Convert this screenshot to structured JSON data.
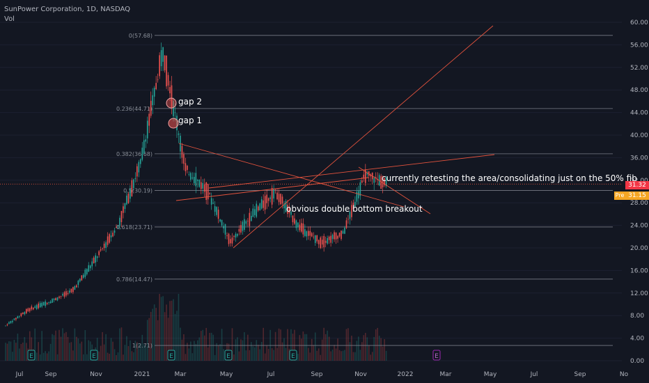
{
  "header": {
    "title": "SunPower Corporation, 1D, NASDAQ",
    "indicator": "Vol"
  },
  "price_tags": {
    "last": "31.32",
    "pre_label": "Pre",
    "pre_value": "31.15"
  },
  "annotations": {
    "gap2": "gap 2",
    "gap1": "gap 1",
    "retest": "currently retesting the area/consolidating  just on the 50% fib",
    "breakout": "obvious double bottom breakout"
  },
  "event_markers": {
    "earnings": "E",
    "dividend": "E"
  },
  "colors": {
    "bg": "#131722",
    "up": "#26a69a",
    "down": "#ef5350",
    "trend": "#e5533d",
    "fib": "#787b86",
    "pre": "#f5a623",
    "last": "#f23645"
  },
  "chart_data": {
    "type": "candlestick",
    "title": "SunPower Corporation, 1D, NASDAQ",
    "ylim": [
      0,
      62
    ],
    "y_ticks": [
      "60.00",
      "56.00",
      "52.00",
      "48.00",
      "44.00",
      "40.00",
      "36.00",
      "32.00",
      "28.00",
      "24.00",
      "20.00",
      "16.00",
      "12.00",
      "8.00",
      "4.00",
      "0.00"
    ],
    "x_ticks": [
      "Jul",
      "Sep",
      "Nov",
      "2021",
      "Mar",
      "May",
      "Jul",
      "Sep",
      "Nov",
      "2022",
      "Mar",
      "May",
      "Jul",
      "Sep",
      "No"
    ],
    "fib_levels": [
      {
        "label": "0(57.68)",
        "value": 57.68
      },
      {
        "label": "0.236(44.71)",
        "value": 44.71
      },
      {
        "label": "0.382(36.68)",
        "value": 36.68
      },
      {
        "label": "0.5(30.19)",
        "value": 30.19
      },
      {
        "label": "0.618(23.71)",
        "value": 23.71
      },
      {
        "label": "0.786(14.47)",
        "value": 14.47
      },
      {
        "label": "1(2.71)",
        "value": 2.71
      }
    ],
    "price_path": [
      [
        "2020-07",
        6.2
      ],
      [
        "2020-08",
        9.0
      ],
      [
        "2020-09",
        10.5
      ],
      [
        "2020-10",
        12.5
      ],
      [
        "2020-11",
        18.0
      ],
      [
        "2020-12",
        24.0
      ],
      [
        "2021-01",
        35.0
      ],
      [
        "2021-02",
        55.0
      ],
      [
        "2021-03",
        34.0
      ],
      [
        "2021-04",
        30.0
      ],
      [
        "2021-05",
        21.0
      ],
      [
        "2021-06",
        26.0
      ],
      [
        "2021-07",
        30.0
      ],
      [
        "2021-08",
        24.0
      ],
      [
        "2021-09",
        21.0
      ],
      [
        "2021-10",
        22.5
      ],
      [
        "2021-11",
        33.0
      ],
      [
        "2021-12",
        31.32
      ]
    ],
    "last_price": 31.32,
    "premarket_price": 31.15
  }
}
